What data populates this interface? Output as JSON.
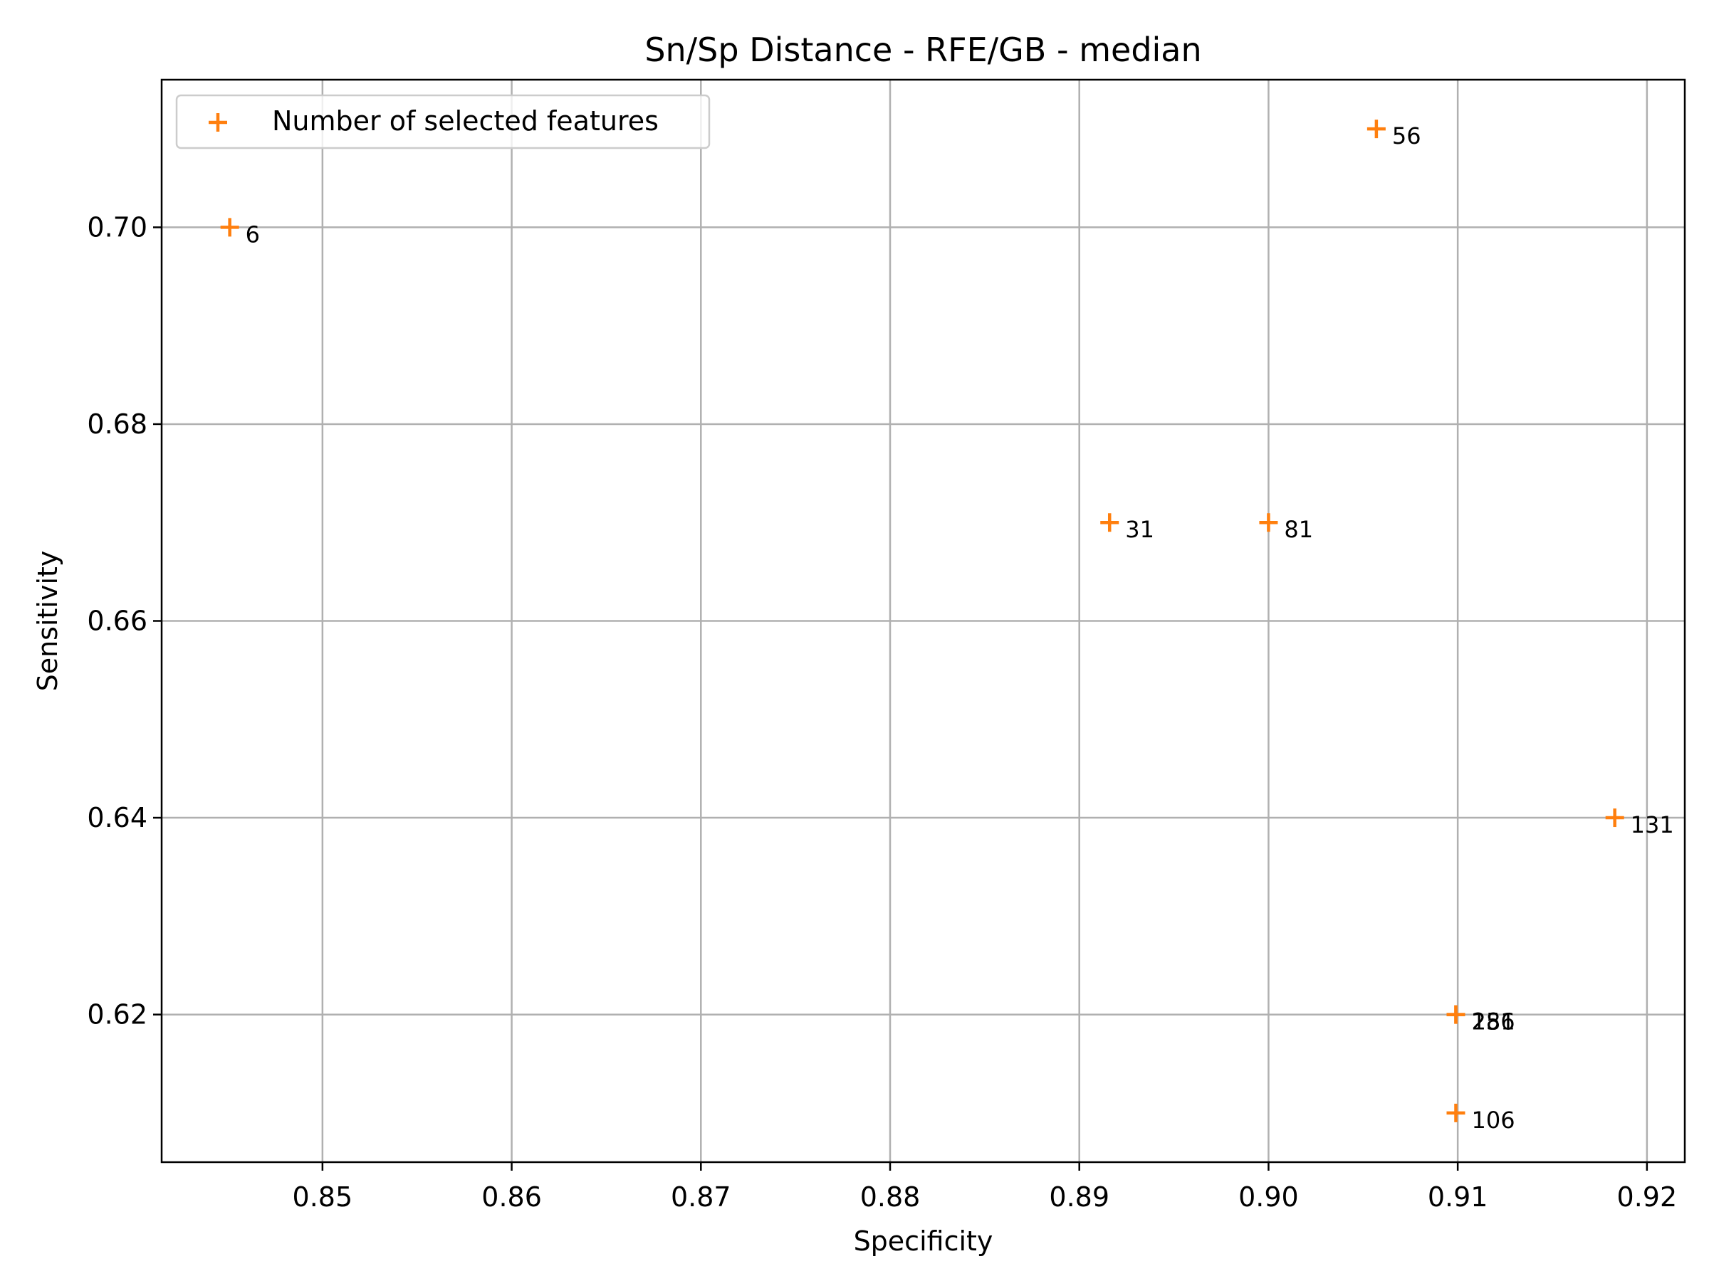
{
  "chart_data": {
    "type": "scatter",
    "title": "Sn/Sp Distance - RFE/GB - median",
    "xlabel": "Specificity",
    "ylabel": "Sensitivity",
    "xlim": [
      0.8415,
      0.922
    ],
    "ylim": [
      0.605,
      0.715
    ],
    "xticks": [
      0.85,
      0.86,
      0.87,
      0.88,
      0.89,
      0.9,
      0.91,
      0.92
    ],
    "xtick_labels": [
      "0.85",
      "0.86",
      "0.87",
      "0.88",
      "0.89",
      "0.90",
      "0.91",
      "0.92"
    ],
    "yticks": [
      0.62,
      0.64,
      0.66,
      0.68,
      0.7
    ],
    "ytick_labels": [
      "0.62",
      "0.64",
      "0.66",
      "0.68",
      "0.70"
    ],
    "grid": true,
    "legend_position": "top-left",
    "marker": "plus",
    "color": "#ff7f0e",
    "series": [
      {
        "name": "Number of selected features",
        "points": [
          {
            "x": 0.8451,
            "y": 0.7,
            "label": "6"
          },
          {
            "x": 0.9057,
            "y": 0.71,
            "label": "56"
          },
          {
            "x": 0.8916,
            "y": 0.67,
            "label": "31"
          },
          {
            "x": 0.9,
            "y": 0.67,
            "label": "81"
          },
          {
            "x": 0.9183,
            "y": 0.64,
            "label": "131"
          },
          {
            "x": 0.9099,
            "y": 0.62,
            "label": "156"
          },
          {
            "x": 0.9099,
            "y": 0.62,
            "label": "281"
          },
          {
            "x": 0.9099,
            "y": 0.61,
            "label": "106"
          }
        ]
      }
    ]
  }
}
